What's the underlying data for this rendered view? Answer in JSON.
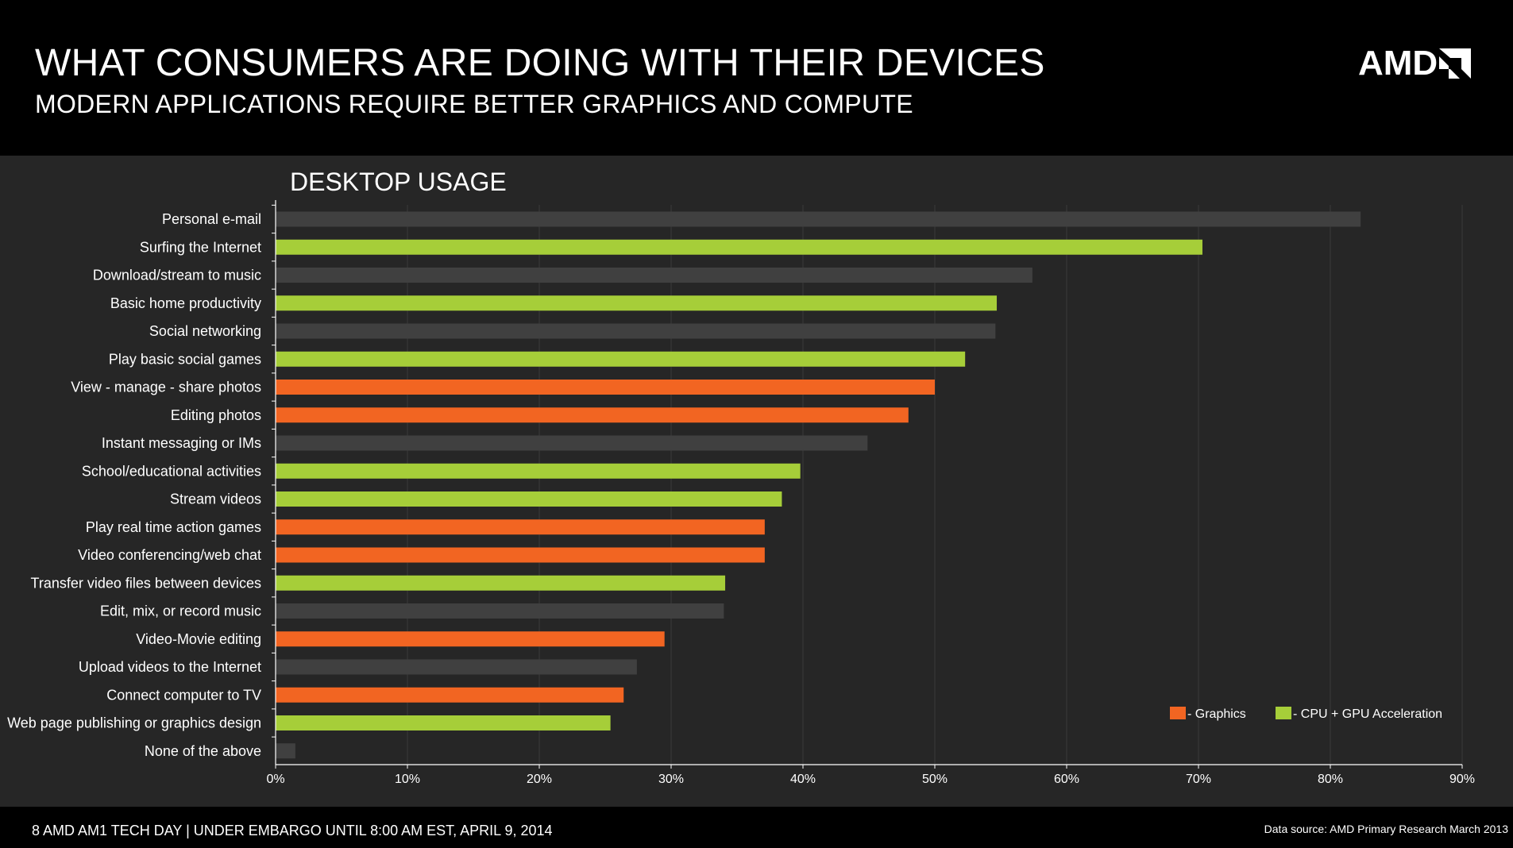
{
  "slide": {
    "title": "WHAT CONSUMERS ARE DOING WITH THEIR DEVICES",
    "subtitle": "MODERN APPLICATIONS REQUIRE BETTER GRAPHICS AND COMPUTE",
    "logo_text": "AMD",
    "footer_left": "8  AMD AM1 TECH DAY  |  UNDER EMBARGO UNTIL 8:00 AM EST, APRIL 9, 2014",
    "footer_right": "Data source: AMD Primary Research March 2013"
  },
  "colors": {
    "graphics": "#f26522",
    "cpu_gpu": "#a6ce39",
    "other": "#404040"
  },
  "chart_data": {
    "type": "bar",
    "orientation": "horizontal",
    "title": "DESKTOP USAGE",
    "xlim": [
      0,
      90
    ],
    "xticks": [
      0,
      10,
      20,
      30,
      40,
      50,
      60,
      70,
      80,
      90
    ],
    "xtick_labels": [
      "0%",
      "10%",
      "20%",
      "30%",
      "40%",
      "50%",
      "60%",
      "70%",
      "80%",
      "90%"
    ],
    "grid": true,
    "legend_position": "bottom-right",
    "legend": [
      {
        "key": "graphics",
        "label": " - Graphics"
      },
      {
        "key": "cpu_gpu",
        "label": " - CPU + GPU Acceleration"
      }
    ],
    "categories": [
      "Personal e-mail",
      "Surfing the Internet",
      "Download/stream to music",
      "Basic home productivity",
      "Social networking",
      "Play basic social games",
      "View - manage - share photos",
      "Editing photos",
      "Instant messaging or IMs",
      "School/educational activities",
      "Stream videos",
      "Play real time action games",
      "Video conferencing/web chat",
      "Transfer video files between devices",
      "Edit, mix, or record music",
      "Video-Movie editing",
      "Upload videos to the Internet",
      "Connect computer to TV",
      "Web page publishing or graphics design",
      "None of the above"
    ],
    "values": [
      82.3,
      70.3,
      57.4,
      54.7,
      54.6,
      52.3,
      50.0,
      48.0,
      44.9,
      39.8,
      38.4,
      37.1,
      37.1,
      34.1,
      34.0,
      29.5,
      27.4,
      26.4,
      25.4,
      1.5
    ],
    "groups": [
      "other",
      "cpu_gpu",
      "other",
      "cpu_gpu",
      "other",
      "cpu_gpu",
      "graphics",
      "graphics",
      "other",
      "cpu_gpu",
      "cpu_gpu",
      "graphics",
      "graphics",
      "cpu_gpu",
      "other",
      "graphics",
      "other",
      "graphics",
      "cpu_gpu",
      "other"
    ]
  }
}
